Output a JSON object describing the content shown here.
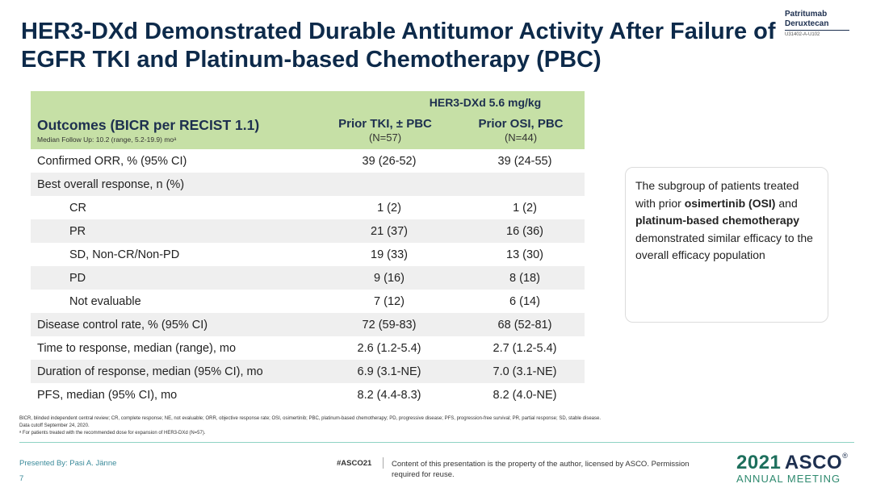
{
  "brand": {
    "line1": "Patritumab",
    "line2": "Deruxtecan",
    "code": "U31402-A-U102"
  },
  "title": "HER3-DXd Demonstrated Durable Antitumor Activity After Failure of EGFR TKI and Platinum-based Chemotherapy (PBC)",
  "table": {
    "group_label": "HER3-DXd 5.6 mg/kg",
    "outcomes_label": "Outcomes (BICR per RECIST 1.1)",
    "followup": "Median Follow Up: 10.2 (range, 5.2-19.9) moᵃ",
    "col1_head": "Prior TKI, ± PBC",
    "col1_n": "(N=57)",
    "col2_head": "Prior OSI, PBC",
    "col2_n": "(N=44)",
    "rows": [
      {
        "label": "Confirmed ORR, % (95% CI)",
        "v1": "39 (26-52)",
        "v2": "39 (24-55)"
      },
      {
        "label": "Best overall response, n (%)",
        "v1": "",
        "v2": ""
      },
      {
        "label": "CR",
        "v1": "1 (2)",
        "v2": "1 (2)"
      },
      {
        "label": "PR",
        "v1": "21 (37)",
        "v2": "16 (36)"
      },
      {
        "label": "SD, Non-CR/Non-PD",
        "v1": "19 (33)",
        "v2": "13 (30)"
      },
      {
        "label": "PD",
        "v1": "9 (16)",
        "v2": "8 (18)"
      },
      {
        "label": "Not evaluable",
        "v1": "7 (12)",
        "v2": "6 (14)"
      },
      {
        "label": "Disease control rate, % (95% CI)",
        "v1": "72 (59-83)",
        "v2": "68 (52-81)"
      },
      {
        "label": "Time to response, median (range), mo",
        "v1": "2.6 (1.2-5.4)",
        "v2": "2.7 (1.2-5.4)"
      },
      {
        "label": "Duration of response, median (95% CI), mo",
        "v1": "6.9 (3.1-NE)",
        "v2": "7.0 (3.1-NE)"
      },
      {
        "label": "PFS, median (95% CI), mo",
        "v1": "8.2 (4.4-8.3)",
        "v2": "8.2 (4.0-NE)"
      }
    ]
  },
  "callout": {
    "t1": "The subgroup of patients treated with prior",
    "b1": "osimertinib (OSI)",
    "t2": "and",
    "b2": "platinum-based chemotherapy",
    "t3": "demonstrated similar efficacy to the overall efficacy population"
  },
  "footnotes": {
    "abbrev": "BICR, blinded independent central review; CR, complete response; NE, not evaluable; ORR, objective response rate; OSI, osimertinib; PBC, platinum-based chemotherapy; PD, progressive disease; PFS, progression-free survival; PR, partial response; SD, stable disease.",
    "cutoff": "Data cutoff September 24, 2020.",
    "note_a": "ᵃ For patients treated with the recommended dose for expansion of HER3-DXd (N=57)."
  },
  "footer": {
    "presenter": "Presented By: Pasi A. Jänne",
    "page": "7",
    "hashtag": "#ASCO21",
    "copyright": "Content of this presentation is the property of the author, licensed by ASCO. Permission required for reuse.",
    "asco_year": "2021",
    "asco_name": "ASCO",
    "asco_reg": "®",
    "asco_meeting": "ANNUAL MEETING"
  }
}
